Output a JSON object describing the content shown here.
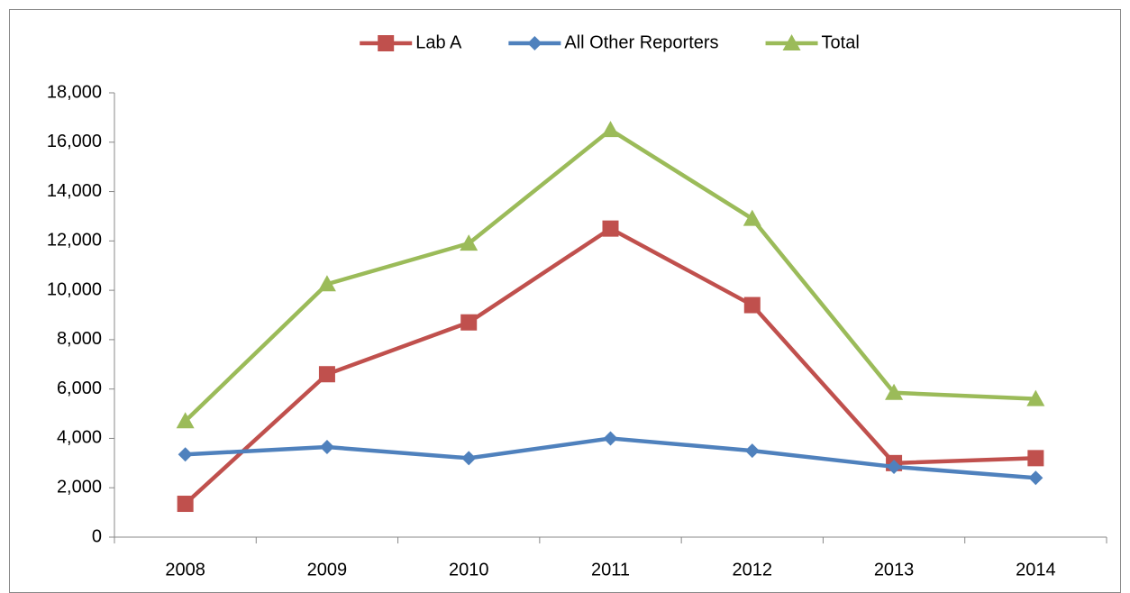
{
  "chart_data": {
    "type": "line",
    "categories": [
      "2008",
      "2009",
      "2010",
      "2011",
      "2012",
      "2013",
      "2014"
    ],
    "series": [
      {
        "name": "Lab A",
        "color": "#c0504d",
        "marker": "square",
        "values": [
          1350,
          6600,
          8700,
          12500,
          9400,
          3000,
          3200
        ]
      },
      {
        "name": "All Other Reporters",
        "color": "#4f81bd",
        "marker": "diamond",
        "values": [
          3350,
          3650,
          3200,
          4000,
          3500,
          2850,
          2400
        ]
      },
      {
        "name": "Total",
        "color": "#9bbb59",
        "marker": "triangle",
        "values": [
          4700,
          10250,
          11900,
          16500,
          12900,
          5850,
          5600
        ]
      }
    ],
    "ylim": [
      0,
      18000
    ],
    "yticks": [
      0,
      {
        "value": 2000,
        "label": "2,000"
      },
      {
        "value": 4000,
        "label": "4,000"
      },
      {
        "value": 6000,
        "label": "6,000"
      },
      {
        "value": 8000,
        "label": "8,000"
      },
      {
        "value": 10000,
        "label": "10,000"
      },
      {
        "value": 12000,
        "label": "12,000"
      },
      {
        "value": 14000,
        "label": "14,000"
      },
      {
        "value": 16000,
        "label": "16,000"
      },
      {
        "value": 18000,
        "label": "18,000"
      }
    ],
    "grid": false,
    "legend": "top"
  }
}
